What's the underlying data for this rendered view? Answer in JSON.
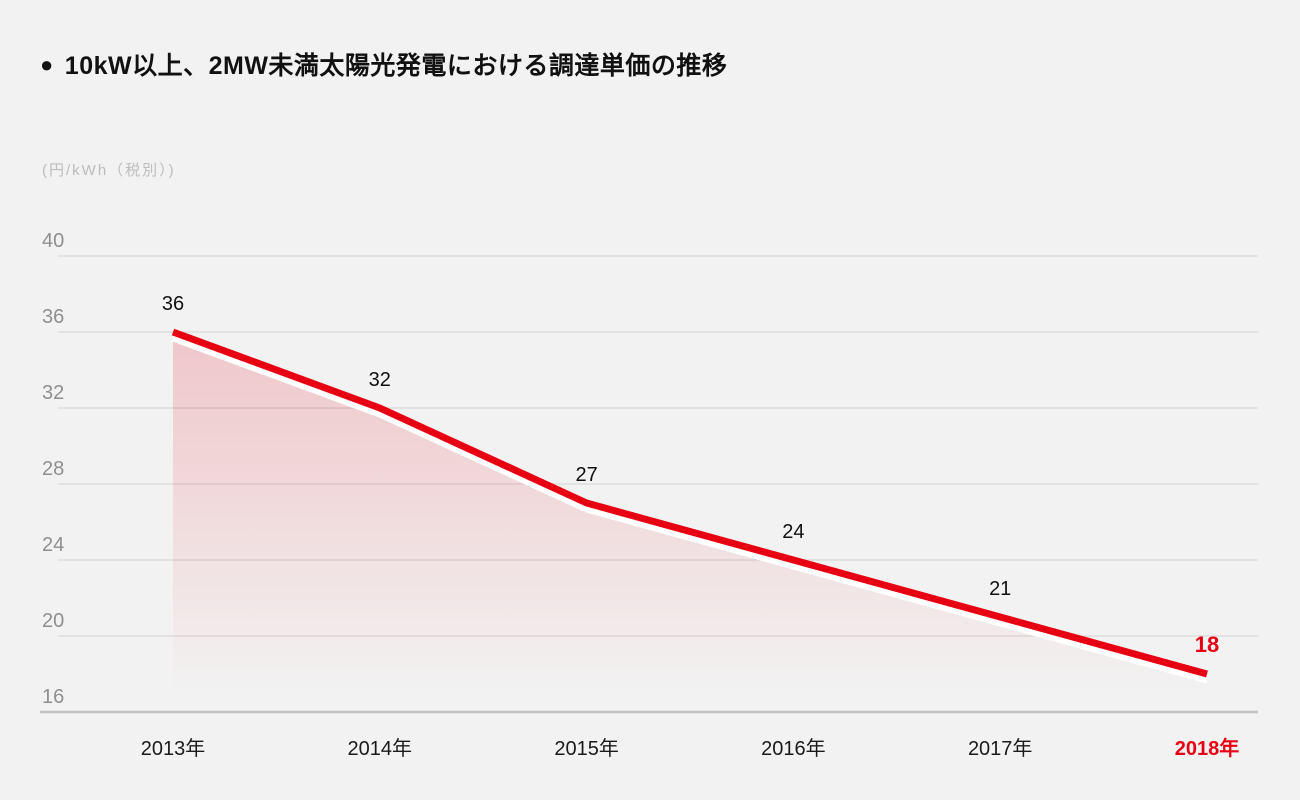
{
  "page": {
    "background": "#f2f2f2"
  },
  "title": {
    "bullet": "●",
    "text": "10kW以上、2MW未満太陽光発電における調達単価の推移"
  },
  "unit_label": "(円/kWh（税別）)",
  "chart_data": {
    "type": "area",
    "title": "10kW以上、2MW未満太陽光発電における調達単価の推移",
    "ylabel": "(円/kWh（税別）)",
    "xlabel": "",
    "categories": [
      "2013年",
      "2014年",
      "2015年",
      "2016年",
      "2017年",
      "2018年"
    ],
    "values": [
      36,
      32,
      27,
      24,
      21,
      18
    ],
    "yticks": [
      40,
      36,
      32,
      28,
      24,
      20,
      16
    ],
    "ylim": [
      16,
      40
    ],
    "grid": true,
    "legend": "none",
    "highlight_last_index": 5,
    "colors": {
      "line": "#e60012",
      "line_underlight": "#ffffff",
      "area_fill": "#e60012",
      "value_label": "#111111",
      "x_label": "#1a1a1a",
      "highlight": "#e60012",
      "tick_label": "#8f8f8f",
      "gridline": "#dcdcdc",
      "baseline": "#c2c2c2",
      "unit_label": "#bcbcbc"
    }
  }
}
